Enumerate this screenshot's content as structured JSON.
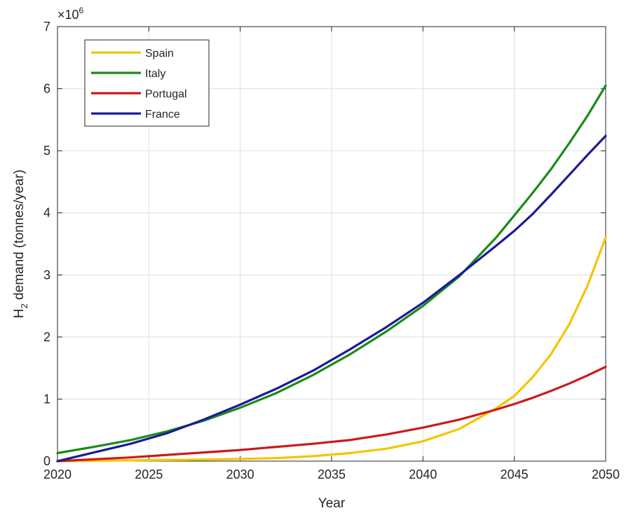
{
  "chart_data": {
    "type": "line",
    "xlabel": "Year",
    "ylabel_main": "H",
    "ylabel_sub": "2",
    "ylabel_rest": " demand (tonnes/year)",
    "exponent_prefix": "×10",
    "exponent_power": "6",
    "xlim": [
      2020,
      2050
    ],
    "ylim": [
      0,
      7
    ],
    "x_ticks": [
      2020,
      2025,
      2030,
      2035,
      2040,
      2045,
      2050
    ],
    "y_ticks": [
      0,
      1,
      2,
      3,
      4,
      5,
      6,
      7
    ],
    "grid": true,
    "legend_position": "top-left",
    "x": [
      2020,
      2022,
      2024,
      2026,
      2028,
      2030,
      2032,
      2034,
      2036,
      2038,
      2040,
      2042,
      2044,
      2045,
      2046,
      2047,
      2048,
      2049,
      2050
    ],
    "series": [
      {
        "name": "Spain",
        "color": "#f5c400",
        "values": [
          0.0,
          0.006,
          0.012,
          0.018,
          0.025,
          0.035,
          0.05,
          0.08,
          0.13,
          0.2,
          0.32,
          0.52,
          0.85,
          1.05,
          1.35,
          1.72,
          2.2,
          2.82,
          3.6
        ]
      },
      {
        "name": "Italy",
        "color": "#1a8a1a",
        "values": [
          0.13,
          0.23,
          0.34,
          0.48,
          0.65,
          0.86,
          1.1,
          1.39,
          1.72,
          2.09,
          2.5,
          2.98,
          3.6,
          3.96,
          4.32,
          4.7,
          5.12,
          5.56,
          6.05
        ]
      },
      {
        "name": "Portugal",
        "color": "#cc1a1a",
        "values": [
          0.0,
          0.03,
          0.06,
          0.1,
          0.14,
          0.18,
          0.23,
          0.28,
          0.34,
          0.43,
          0.54,
          0.67,
          0.83,
          0.92,
          1.02,
          1.13,
          1.25,
          1.38,
          1.52
        ]
      },
      {
        "name": "France",
        "color": "#1a1a99",
        "values": [
          0.0,
          0.14,
          0.28,
          0.45,
          0.67,
          0.91,
          1.17,
          1.46,
          1.8,
          2.16,
          2.55,
          3.0,
          3.47,
          3.71,
          3.98,
          4.29,
          4.61,
          4.93,
          5.24
        ]
      }
    ]
  }
}
